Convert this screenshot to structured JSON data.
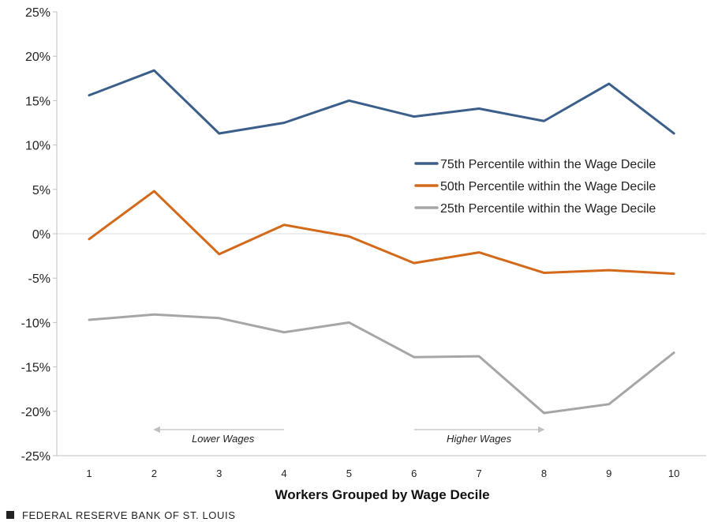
{
  "chart_data": {
    "type": "line",
    "x": [
      1,
      2,
      3,
      4,
      5,
      6,
      7,
      8,
      9,
      10
    ],
    "xlabel": "Workers Grouped by Wage Decile",
    "ylabel": "",
    "ylim": [
      -25,
      25
    ],
    "yticks": [
      25,
      20,
      15,
      10,
      5,
      0,
      -5,
      -10,
      -15,
      -20,
      -25
    ],
    "ytick_labels": [
      "25%",
      "20%",
      "15%",
      "10%",
      "5%",
      "0%",
      "-5%",
      "-10%",
      "-15%",
      "-20%",
      "-25%"
    ],
    "grid": false,
    "legend_position": "right",
    "series": [
      {
        "name": "75th Percentile within the Wage Decile",
        "color": "#3b5f8a",
        "values": [
          15.6,
          18.4,
          11.3,
          12.5,
          15.0,
          13.2,
          14.1,
          12.7,
          16.9,
          11.3
        ]
      },
      {
        "name": "50th Percentile within the Wage Decile",
        "color": "#d3691a",
        "values": [
          -0.6,
          4.8,
          -2.3,
          1.0,
          -0.3,
          -3.3,
          -2.1,
          -4.4,
          -4.1,
          -4.5
        ]
      },
      {
        "name": "25th Percentile within the Wage Decile",
        "color": "#a6a6a6",
        "values": [
          -9.7,
          -9.1,
          -9.5,
          -11.1,
          -10.0,
          -13.9,
          -13.8,
          -20.2,
          -19.2,
          -13.4
        ]
      }
    ],
    "annotations": [
      {
        "text": "Lower Wages",
        "arrow": "left",
        "from_x": 4,
        "to_x": 2
      },
      {
        "text": "Higher Wages",
        "arrow": "right",
        "from_x": 6,
        "to_x": 8
      }
    ]
  },
  "source": {
    "square_icon": "square-icon",
    "text": "FEDERAL RESERVE BANK OF ST. LOUIS"
  }
}
